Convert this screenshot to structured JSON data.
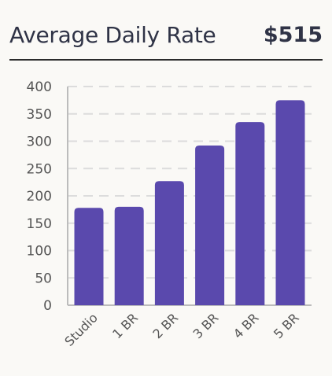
{
  "header": {
    "title": "Average Daily Rate",
    "value": "$515"
  },
  "colors": {
    "bar": "#5a49ad",
    "grid": "#dcdcdc",
    "axis": "#bcbcbc",
    "text": "#2f3346"
  },
  "chart_data": {
    "type": "bar",
    "title": "Average Daily Rate",
    "categories": [
      "Studio",
      "1 BR",
      "2 BR",
      "3 BR",
      "4 BR",
      "5 BR"
    ],
    "values": [
      178,
      180,
      227,
      292,
      335,
      375
    ],
    "ylim": [
      0,
      400
    ],
    "yticks": [
      0,
      50,
      100,
      150,
      200,
      250,
      300,
      350,
      400
    ],
    "grid": true,
    "xlabel": "",
    "ylabel": ""
  }
}
